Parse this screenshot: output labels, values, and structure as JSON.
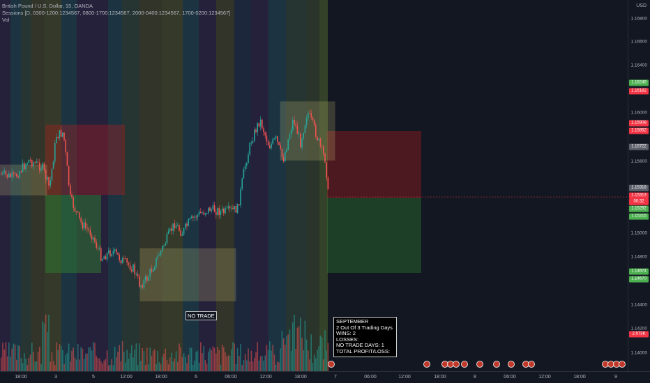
{
  "legend": {
    "title": "British Pound / U.S. Dollar, 15, OANDA",
    "sessions": "Sessions [D, 0300-1200:1234567, 0800-1700:1234567, 2000-0400:1234567, 1700-0200:1234567]",
    "vol": "Vol"
  },
  "price_axis": {
    "currency": "USD",
    "ticks": [
      "1.16800",
      "1.16600",
      "1.16400",
      "1.16000",
      "1.15600",
      "1.15000",
      "1.14800",
      "1.14400",
      "1.14200",
      "1.14000"
    ],
    "tags": [
      {
        "text": "1.16249",
        "color": "#4caf50"
      },
      {
        "text": "1.16182",
        "color": "#f23645"
      },
      {
        "text": "1.15908",
        "color": "#f23645"
      },
      {
        "text": "1.15852",
        "color": "#f23645"
      },
      {
        "text": "1.15722",
        "color": "#5d606b"
      },
      {
        "text": "1.15318",
        "color": "#5d606b"
      },
      {
        "text": "1.15313",
        "color": "#f23645"
      },
      {
        "text": "00:32",
        "color": "#f23645"
      },
      {
        "text": "1.15292",
        "color": "#4caf50"
      },
      {
        "text": "1.15215",
        "color": "#4caf50"
      },
      {
        "text": "1.14674",
        "color": "#4caf50"
      },
      {
        "text": "1.14670",
        "color": "#4caf50"
      },
      {
        "text": "2.973K",
        "color": "#f23645"
      }
    ]
  },
  "time_axis": [
    "18:00",
    "3",
    "5",
    "12:00",
    "18:00",
    "6",
    "06:00",
    "12:00",
    "18:00",
    "7",
    "06:00",
    "12:00",
    "18:00",
    "8",
    "06:00",
    "12:00",
    "18:00",
    "9"
  ],
  "annotations": {
    "no_trade": "NO TRADE"
  },
  "stats": {
    "month": "SEPTEMBER",
    "trading_days": "2 Out Of 3 Trading Days",
    "wins": "WINS: 2",
    "losses": "LOSSES:",
    "no_trade_days": "NO TRADE DAYS: 1",
    "total": "TOTAL PROFIT/LOSS:"
  },
  "colors": {
    "background": "#131722",
    "up": "#26a69a",
    "down": "#ef5350",
    "profit_zone": "#2e7d32",
    "loss_zone": "#b71c1c",
    "session_box": "#f0e68c"
  }
}
